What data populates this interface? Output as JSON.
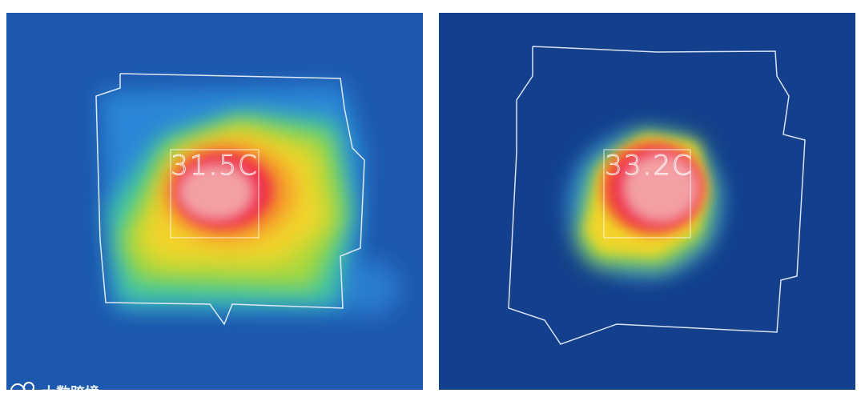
{
  "panels": [
    {
      "reading": "31.5C"
    },
    {
      "reading": "33.2C"
    }
  ],
  "watermark": "大数跨境"
}
